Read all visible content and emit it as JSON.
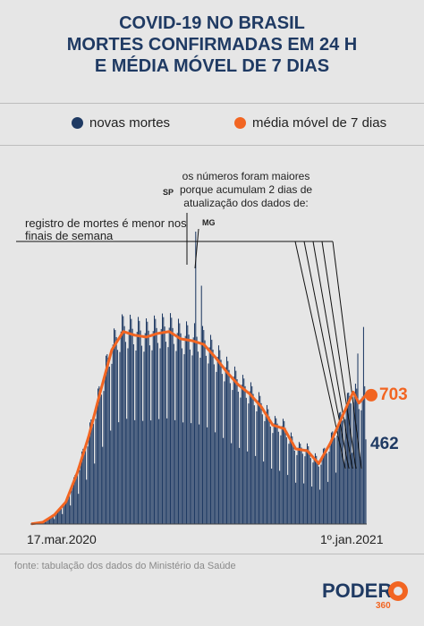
{
  "title": {
    "line1": "COVID-19 NO BRASIL",
    "line2": "MORTES CONFIRMADAS EM 24 H",
    "line3": "E MÉDIA MÓVEL DE 7 DIAS"
  },
  "legend": {
    "bars_label": "novas mortes",
    "line_label": "média móvel de 7 dias",
    "bars_color": "#1f3a63",
    "line_color": "#f26522"
  },
  "annotations": {
    "weekend_line1": "registro de mortes é menor nos",
    "weekend_line2": "finais de semana",
    "accum_line1": "os números foram maiores",
    "accum_line2": "porque acumulam 2 dias de",
    "accum_line3": "atualização dos dados de:",
    "sp": "SP",
    "mg": "MG"
  },
  "source": "fonte: tabulação dos dados do Ministério da Saúde",
  "logo": {
    "word": "PODER",
    "number": "360"
  },
  "chart_data": {
    "type": "bar",
    "x_start_label": "17.mar.2020",
    "x_end_label": "1º.jan.2021",
    "last_value_label": "462",
    "last_average_label": "703",
    "num_days": 292,
    "ylim": [
      0,
      1600
    ],
    "weekly_pattern": [
      0.92,
      1.02,
      1.1,
      1.08,
      1.03,
      0.95,
      0.55
    ],
    "average_curve": [
      [
        0,
        1
      ],
      [
        10,
        10
      ],
      [
        20,
        50
      ],
      [
        30,
        120
      ],
      [
        40,
        280
      ],
      [
        50,
        480
      ],
      [
        60,
        720
      ],
      [
        70,
        950
      ],
      [
        80,
        1050
      ],
      [
        90,
        1030
      ],
      [
        100,
        1020
      ],
      [
        110,
        1040
      ],
      [
        120,
        1050
      ],
      [
        130,
        1010
      ],
      [
        140,
        1000
      ],
      [
        150,
        980
      ],
      [
        160,
        910
      ],
      [
        170,
        830
      ],
      [
        180,
        760
      ],
      [
        190,
        710
      ],
      [
        200,
        640
      ],
      [
        210,
        540
      ],
      [
        220,
        520
      ],
      [
        230,
        410
      ],
      [
        240,
        400
      ],
      [
        250,
        330
      ],
      [
        260,
        440
      ],
      [
        270,
        580
      ],
      [
        280,
        720
      ],
      [
        285,
        660
      ],
      [
        291,
        703
      ]
    ],
    "spikes": [
      {
        "day": 143,
        "value": 1595,
        "label": "SP"
      },
      {
        "day": 148,
        "value": 1300,
        "label": "MG"
      },
      {
        "day": 284,
        "value": 930
      },
      {
        "day": 289,
        "value": 1075
      }
    ],
    "last_value": 462,
    "last_average": 703
  }
}
